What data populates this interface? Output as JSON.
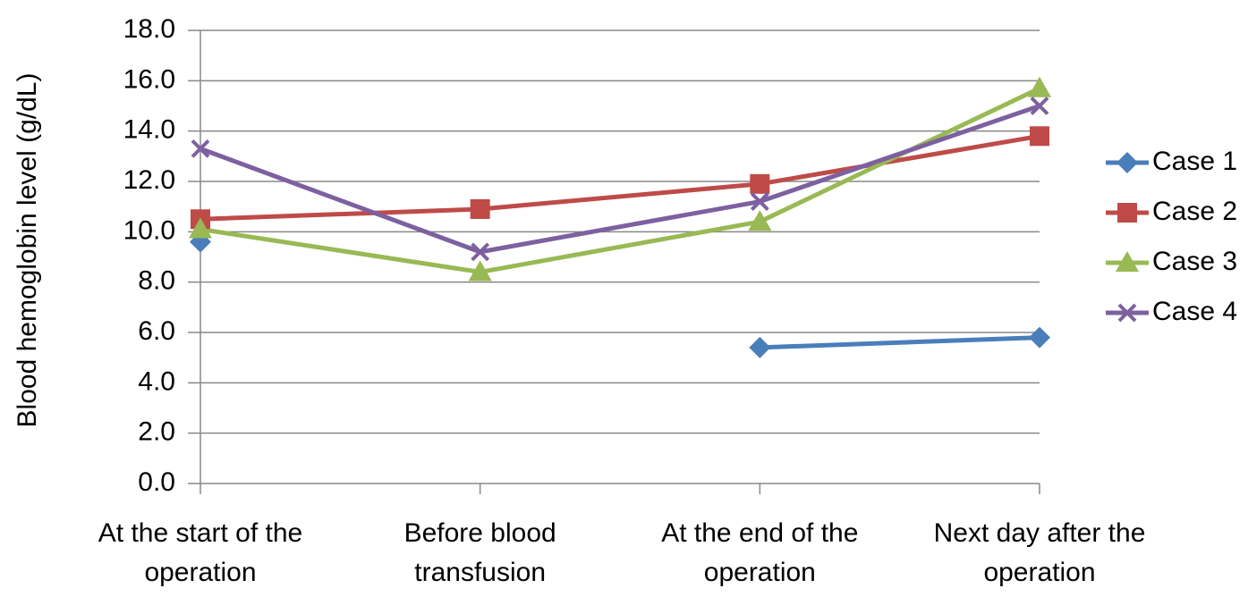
{
  "chart_data": {
    "type": "line",
    "y_label": "Blood hemoglobin level (g/dL)",
    "categories": [
      "At the start of the operation",
      "Before blood transfusion",
      "At the end of the operation",
      "Next day after the operation"
    ],
    "series": [
      {
        "name": "Case 1",
        "color": "#4a7ebb",
        "marker": "diamond",
        "values": [
          9.6,
          null,
          5.4,
          5.8
        ]
      },
      {
        "name": "Case 2",
        "color": "#be4b48",
        "marker": "square",
        "values": [
          10.5,
          10.9,
          11.9,
          13.8
        ]
      },
      {
        "name": "Case 3",
        "color": "#98b954",
        "marker": "triangle",
        "values": [
          10.1,
          8.4,
          10.4,
          15.7
        ]
      },
      {
        "name": "Case 4",
        "color": "#7d60a0",
        "marker": "x",
        "values": [
          13.3,
          9.2,
          11.2,
          15.0
        ]
      }
    ],
    "ylim": [
      0,
      18
    ],
    "yticks": [
      {
        "value": 0,
        "label": "0.0"
      },
      {
        "value": 2,
        "label": "2.0"
      },
      {
        "value": 4,
        "label": "4.0"
      },
      {
        "value": 6,
        "label": "6.0"
      },
      {
        "value": 8,
        "label": "8.0"
      },
      {
        "value": 10,
        "label": "10.0"
      },
      {
        "value": 12,
        "label": "12.0"
      },
      {
        "value": 14,
        "label": "14.0"
      },
      {
        "value": 16,
        "label": "16.0"
      },
      {
        "value": 18,
        "label": "18.0"
      }
    ],
    "grid": true,
    "legend": "right"
  }
}
